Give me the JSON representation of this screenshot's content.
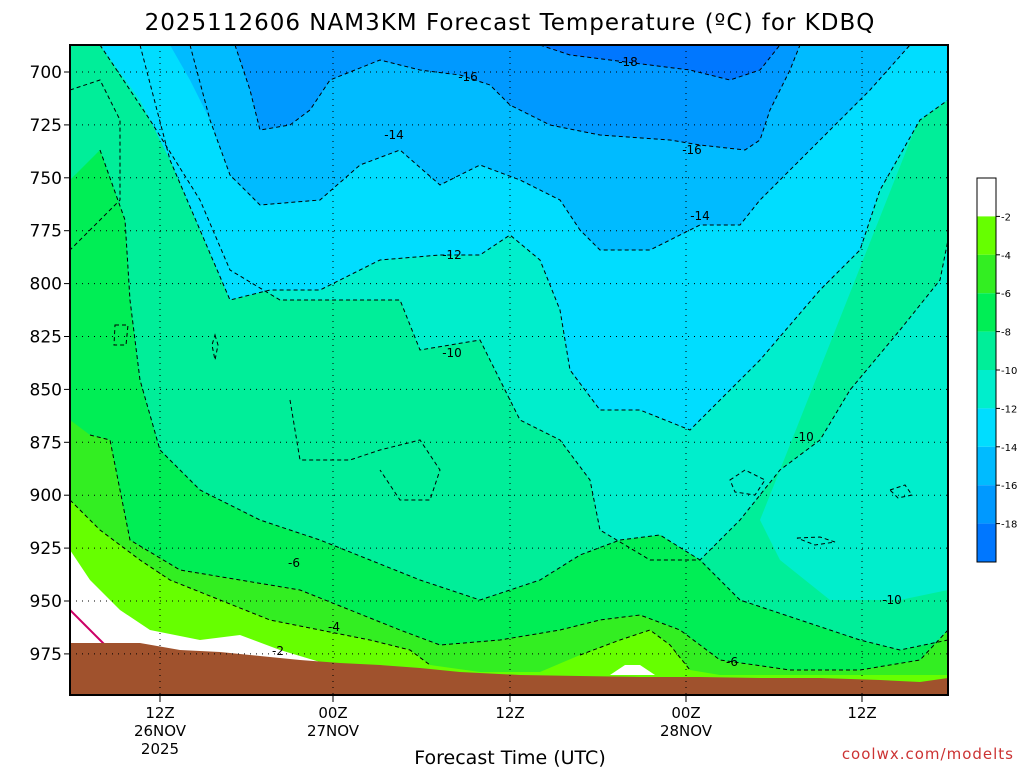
{
  "chart_data": {
    "type": "heatmap",
    "title": "2025112606 NAM3KM Forecast Temperature (ºC) for KDBQ",
    "xlabel": "Forecast Time (UTC)",
    "ylabel": "",
    "credit": "coolwx.com/modelts",
    "y_ticks": [
      "700",
      "725",
      "750",
      "775",
      "800",
      "825",
      "850",
      "875",
      "900",
      "925",
      "950",
      "975"
    ],
    "x_ticks": [
      {
        "label": "12Z",
        "line2": "26NOV",
        "line3": "2025"
      },
      {
        "label": "00Z",
        "line2": "27NOV",
        "line3": ""
      },
      {
        "label": "12Z",
        "line2": "",
        "line3": ""
      },
      {
        "label": "00Z",
        "line2": "28NOV",
        "line3": ""
      },
      {
        "label": "12Z",
        "line2": "",
        "line3": ""
      }
    ],
    "colorbar": {
      "levels": [
        "-2",
        "-4",
        "-6",
        "-8",
        "-10",
        "-12",
        "-14",
        "-16",
        "-18"
      ],
      "colors": [
        "#ffffff",
        "#66ff00",
        "#33ee22",
        "#00ee55",
        "#00ee99",
        "#00eecc",
        "#00ddff",
        "#00bbff",
        "#0099ff",
        "#0077ff"
      ]
    },
    "contour_labels": [
      {
        "text": "-18"
      },
      {
        "text": "-16"
      },
      {
        "text": "-16"
      },
      {
        "text": "-14"
      },
      {
        "text": "-14"
      },
      {
        "text": "-12"
      },
      {
        "text": "-10"
      },
      {
        "text": "-10"
      },
      {
        "text": "-10"
      },
      {
        "text": "-6"
      },
      {
        "text": "-6"
      },
      {
        "text": "-4"
      },
      {
        "text": "-2"
      }
    ],
    "colors": {
      "ground": "#a0522d",
      "frame": "#000000",
      "warm_line": "#cc0066"
    }
  }
}
